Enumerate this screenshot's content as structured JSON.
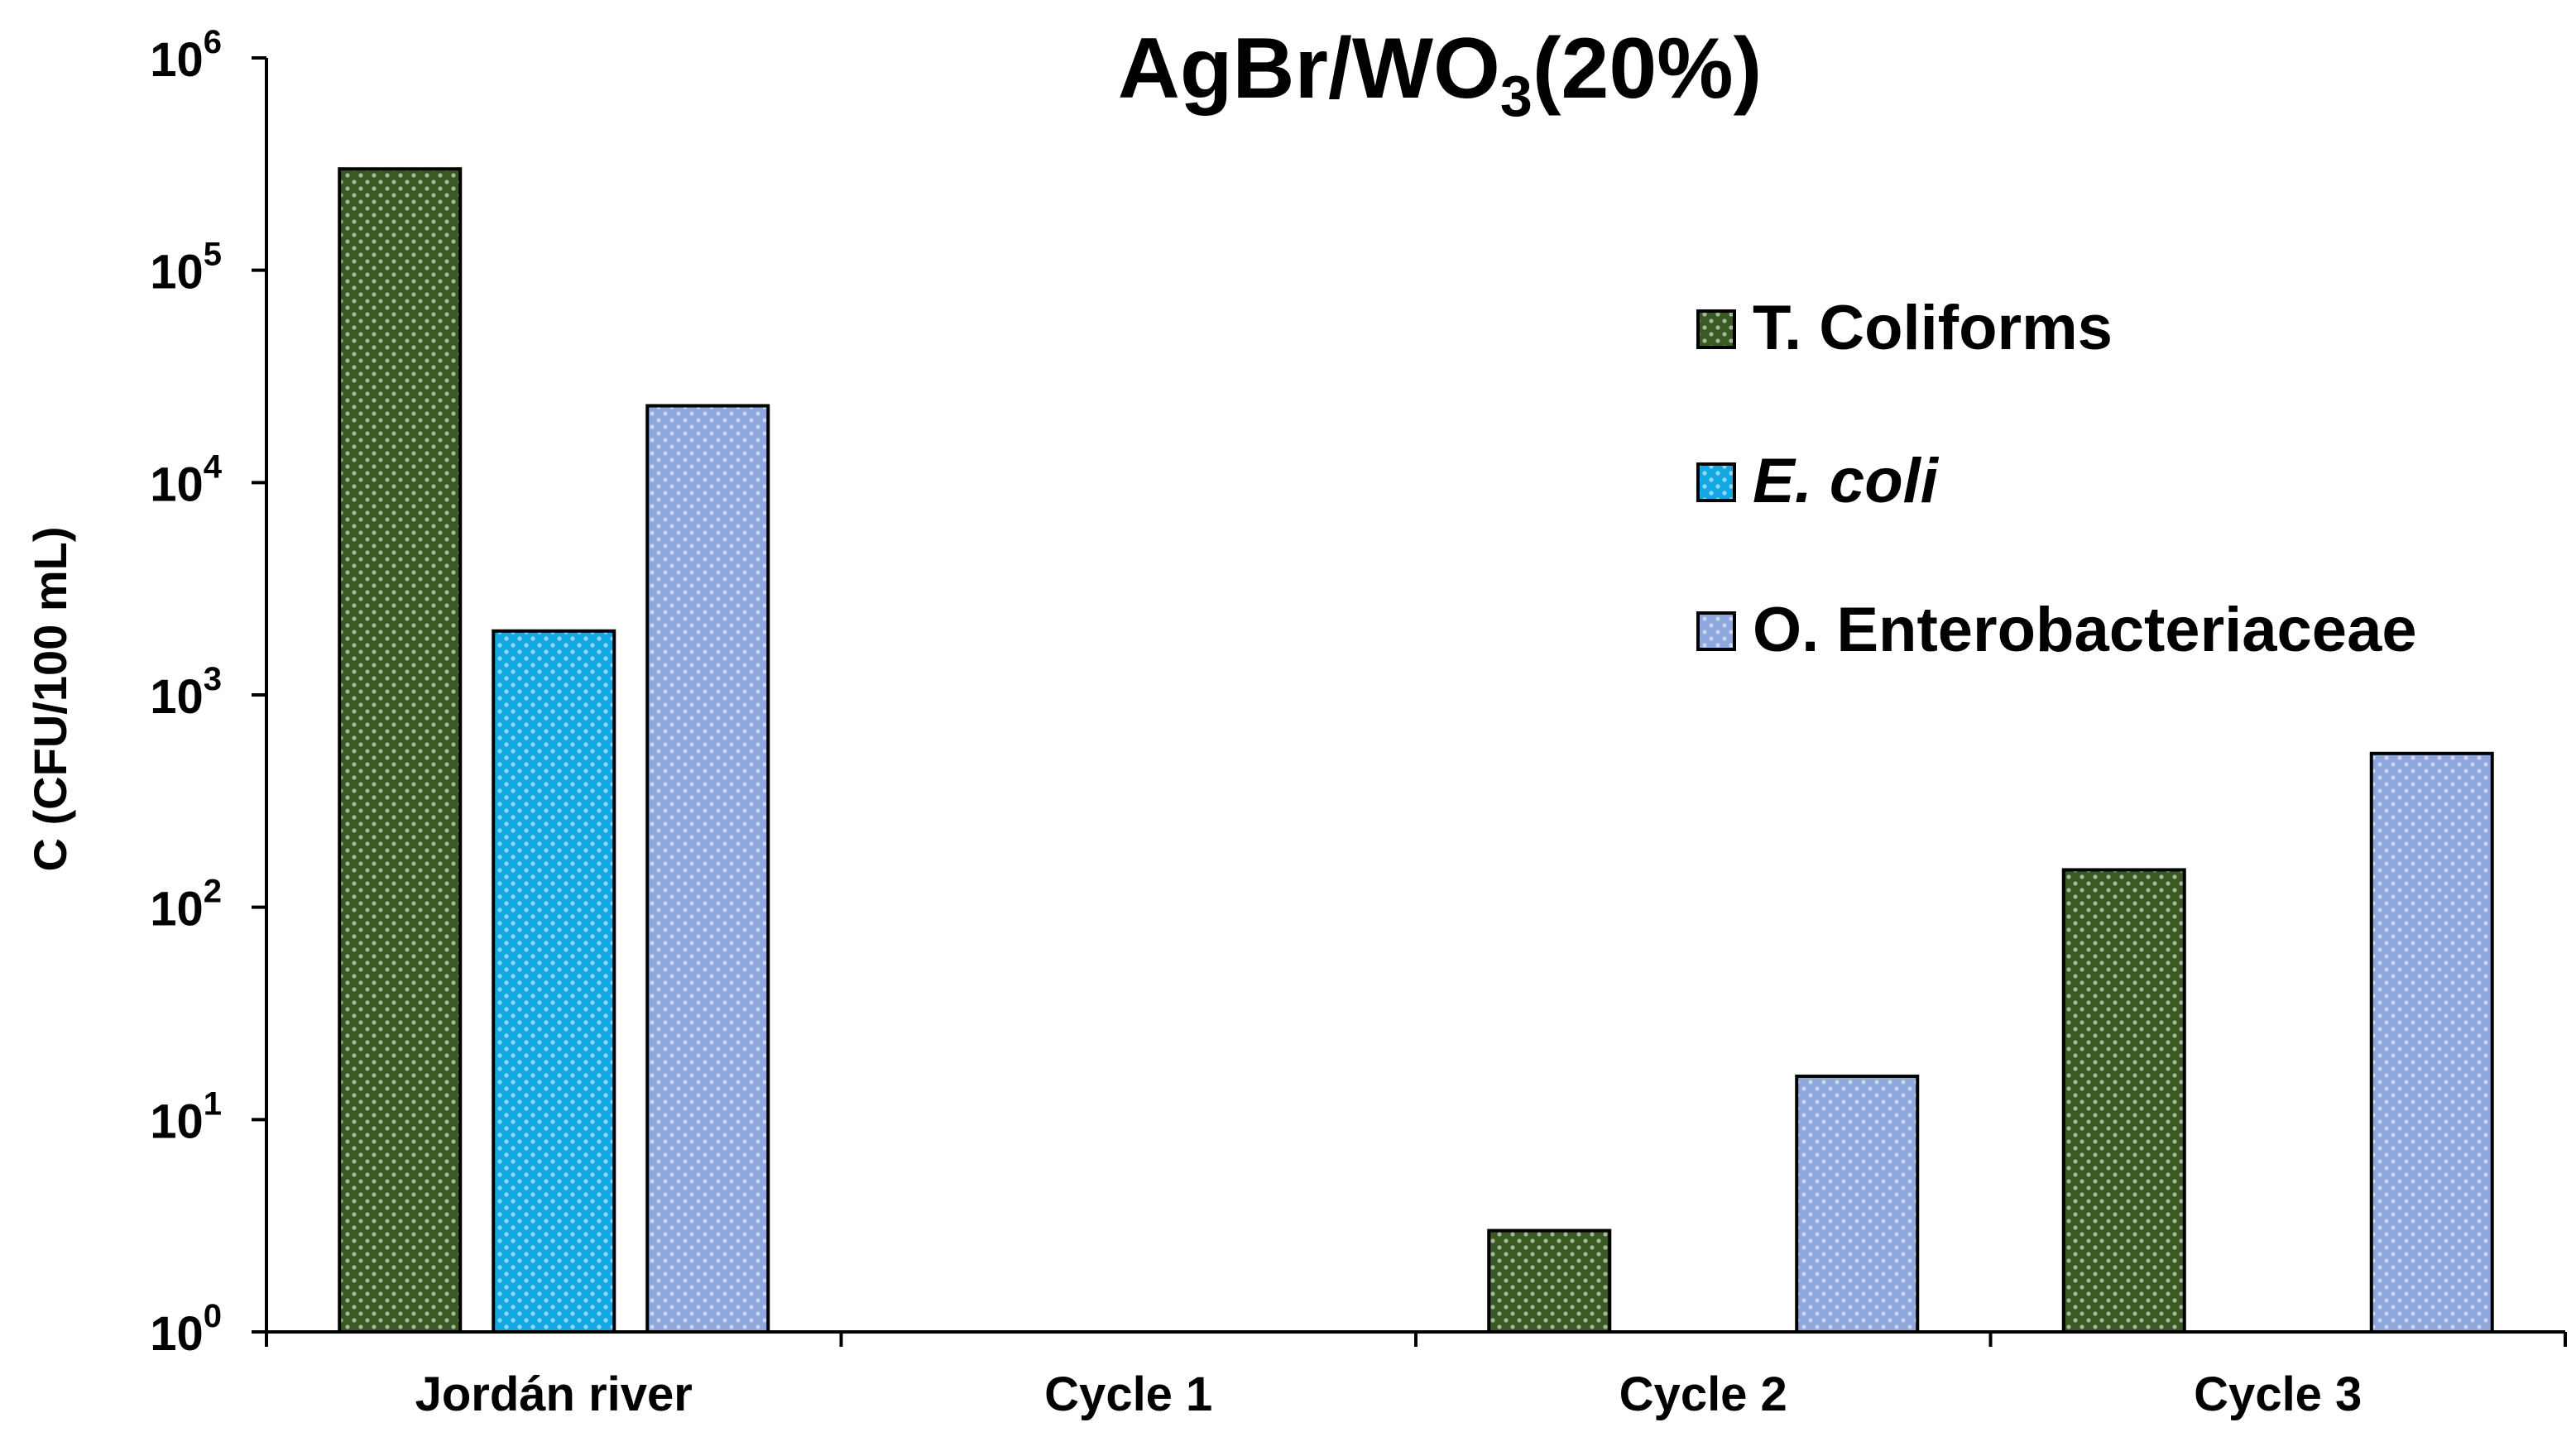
{
  "chart_data": {
    "type": "bar",
    "title": "AgBr/WO3(20%)",
    "title_main": "AgBr/WO",
    "title_sub": "3",
    "title_tail": "(20%)",
    "ylabel": "C (CFU/100 mL)",
    "xlabel": "",
    "yscale": "log",
    "ylim": [
      1,
      1000000
    ],
    "yticks": [
      {
        "base": "10",
        "exp": "0"
      },
      {
        "base": "10",
        "exp": "1"
      },
      {
        "base": "10",
        "exp": "2"
      },
      {
        "base": "10",
        "exp": "3"
      },
      {
        "base": "10",
        "exp": "4"
      },
      {
        "base": "10",
        "exp": "5"
      },
      {
        "base": "10",
        "exp": "6"
      }
    ],
    "categories": [
      "Jordán river",
      "Cycle 1",
      "Cycle 2",
      "Cycle 3"
    ],
    "series": [
      {
        "name": "T. Coliforms",
        "italic": false,
        "color": "#3a5a23",
        "values": [
          300000,
          null,
          3,
          150
        ]
      },
      {
        "name": "E. coli",
        "italic": true,
        "color": "#11a8e3",
        "values": [
          2000,
          null,
          null,
          null
        ]
      },
      {
        "name": "O. Enterobacteriaceae",
        "italic": false,
        "color": "#8ea7dc",
        "values": [
          23000,
          null,
          16,
          530
        ]
      }
    ],
    "legend_position": "right",
    "grid": false
  }
}
